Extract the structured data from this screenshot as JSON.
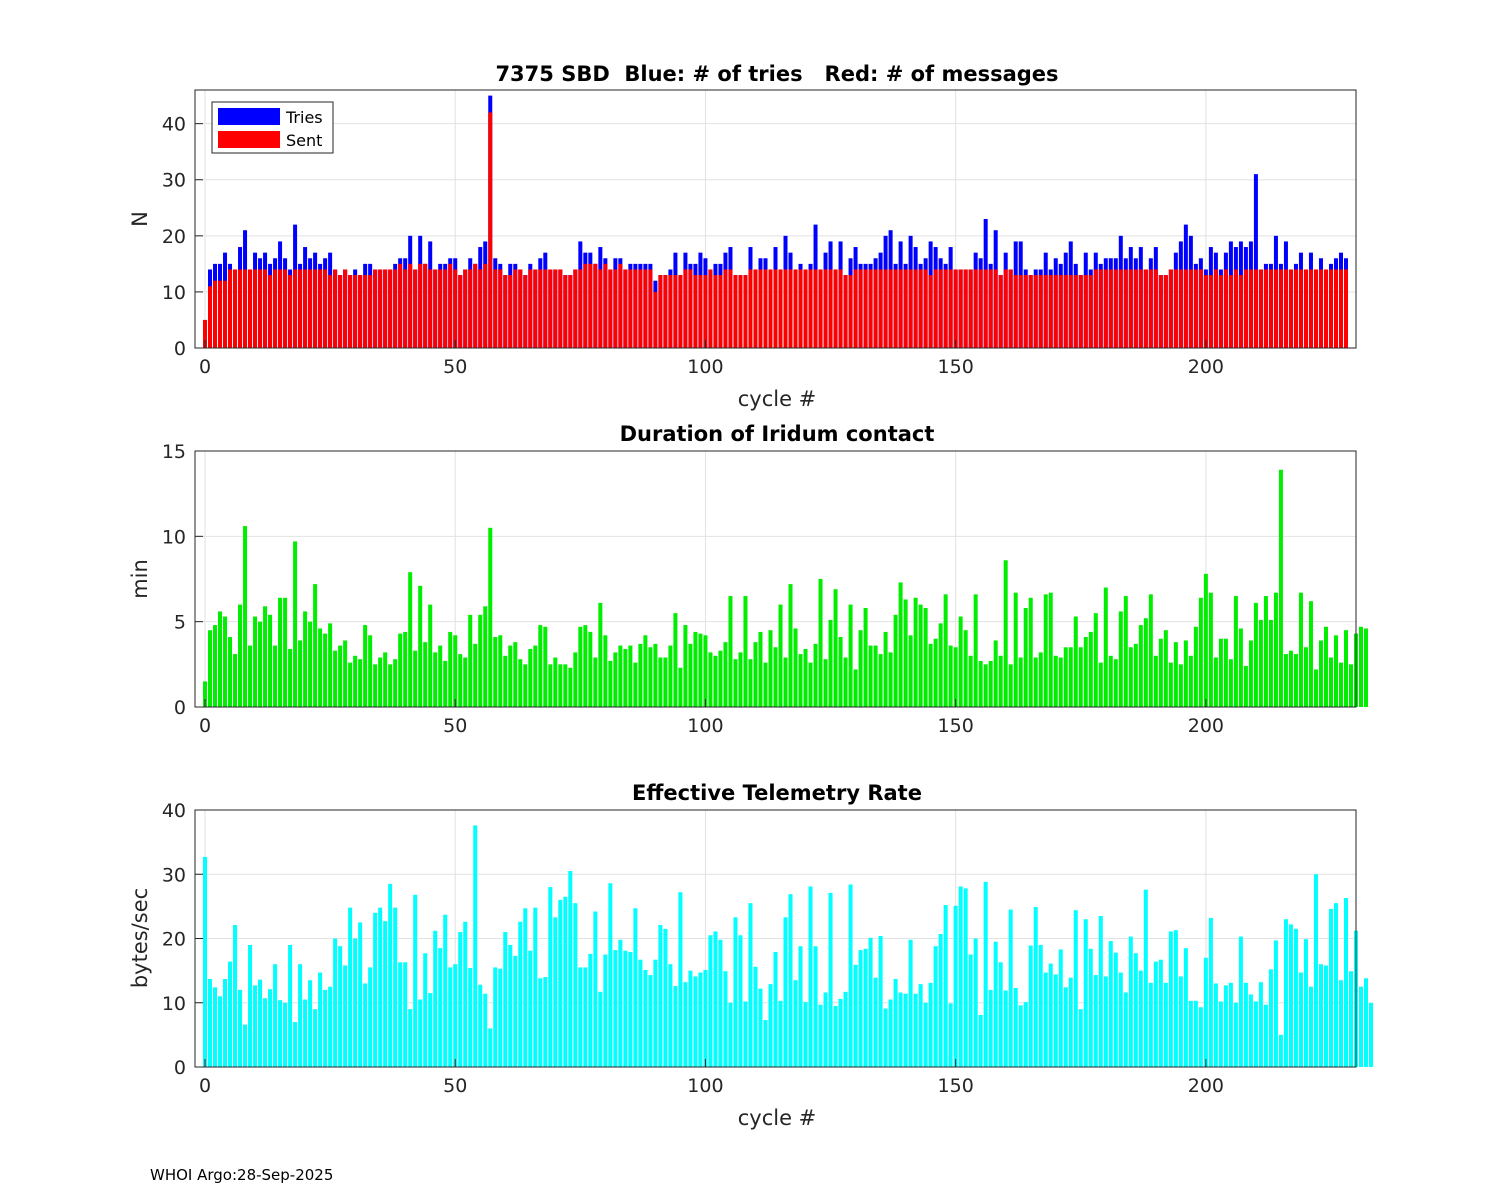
{
  "footer": {
    "label": "WHOI Argo:",
    "date": "28-Sep-2025"
  },
  "chart_data": [
    {
      "type": "bar",
      "title": "7375 SBD  Blue: # of tries   Red: # of messages",
      "xlabel": "cycle #",
      "ylabel": "N",
      "xlim": [
        -2,
        230
      ],
      "ylim": [
        0,
        46
      ],
      "xticks": [
        0,
        50,
        100,
        150,
        200
      ],
      "yticks": [
        0,
        10,
        20,
        30,
        40
      ],
      "grid": true,
      "legend": {
        "position": "top-left",
        "entries": [
          {
            "name": "Tries",
            "color": "#0000ff"
          },
          {
            "name": "Sent",
            "color": "#ff0000"
          }
        ]
      },
      "x_start": 0,
      "series": [
        {
          "name": "Tries",
          "color": "#0000ff",
          "values": [
            5,
            14,
            15,
            15,
            17,
            15,
            14,
            18,
            21,
            14,
            17,
            16,
            17,
            15,
            16,
            19,
            16,
            14,
            22,
            15,
            18,
            16,
            17,
            15,
            16,
            17,
            14,
            13,
            14,
            13,
            14,
            13,
            15,
            15,
            14,
            14,
            14,
            14,
            15,
            16,
            16,
            20,
            14,
            20,
            15,
            19,
            14,
            15,
            15,
            16,
            16,
            13,
            14,
            16,
            15,
            18,
            19,
            45,
            16,
            15,
            13,
            15,
            15,
            14,
            13,
            15,
            14,
            16,
            17,
            14,
            14,
            14,
            13,
            13,
            14,
            19,
            17,
            17,
            15,
            18,
            16,
            14,
            16,
            16,
            14,
            15,
            15,
            15,
            15,
            15,
            12,
            13,
            13,
            14,
            17,
            13,
            17,
            15,
            15,
            17,
            16,
            14,
            15,
            15,
            17,
            18,
            13,
            13,
            13,
            18,
            14,
            16,
            16,
            14,
            18,
            14,
            20,
            17,
            14,
            15,
            14,
            15,
            22,
            14,
            17,
            19,
            14,
            19,
            13,
            16,
            18,
            15,
            15,
            15,
            16,
            17,
            20,
            21,
            15,
            19,
            15,
            20,
            18,
            15,
            16,
            19,
            18,
            16,
            15,
            18,
            14,
            14,
            14,
            14,
            17,
            16,
            23,
            15,
            21,
            13,
            17,
            14,
            19,
            19,
            14,
            13,
            14,
            14,
            17,
            14,
            16,
            15,
            17,
            19,
            15,
            13,
            17,
            14,
            17,
            15,
            16,
            16,
            16,
            20,
            16,
            18,
            16,
            18,
            14,
            16,
            18,
            13,
            13,
            14,
            17,
            19,
            22,
            20,
            15,
            16,
            14,
            18,
            17,
            14,
            17,
            19,
            18,
            19,
            18,
            19,
            31,
            14,
            15,
            15,
            20,
            15,
            19,
            14,
            15,
            17,
            14,
            17,
            14,
            16,
            14,
            15,
            16,
            17,
            16
          ]
        },
        {
          "name": "Sent",
          "color": "#ff0000",
          "values": [
            5,
            11,
            12,
            12,
            12,
            14,
            14,
            14,
            14,
            14,
            14,
            14,
            14,
            13,
            14,
            14,
            14,
            13,
            14,
            14,
            14,
            14,
            14,
            14,
            14,
            13,
            14,
            13,
            14,
            13,
            13,
            13,
            13,
            13,
            14,
            14,
            14,
            14,
            14,
            15,
            14,
            15,
            14,
            15,
            15,
            14,
            14,
            14,
            14,
            15,
            14,
            13,
            14,
            14,
            15,
            14,
            15,
            42,
            14,
            14,
            13,
            13,
            14,
            14,
            13,
            14,
            14,
            14,
            14,
            14,
            14,
            14,
            13,
            13,
            14,
            14,
            15,
            15,
            15,
            14,
            15,
            14,
            14,
            15,
            14,
            14,
            14,
            14,
            14,
            14,
            10,
            13,
            13,
            13,
            13,
            13,
            14,
            14,
            13,
            13,
            13,
            14,
            13,
            13,
            14,
            14,
            13,
            13,
            13,
            14,
            14,
            14,
            14,
            14,
            14,
            14,
            14,
            14,
            14,
            14,
            14,
            14,
            14,
            14,
            14,
            14,
            14,
            14,
            13,
            13,
            14,
            14,
            14,
            14,
            14,
            14,
            14,
            14,
            14,
            14,
            14,
            14,
            14,
            14,
            14,
            13,
            14,
            14,
            14,
            14,
            14,
            14,
            14,
            14,
            14,
            14,
            14,
            14,
            14,
            13,
            14,
            14,
            13,
            13,
            13,
            13,
            13,
            13,
            13,
            13,
            13,
            13,
            13,
            13,
            13,
            13,
            13,
            13,
            14,
            14,
            14,
            14,
            14,
            14,
            14,
            14,
            14,
            14,
            14,
            14,
            14,
            13,
            13,
            14,
            14,
            14,
            14,
            14,
            14,
            14,
            13,
            13,
            14,
            13,
            14,
            13,
            14,
            13,
            14,
            14,
            14,
            14,
            14,
            14,
            14,
            14,
            14,
            14,
            14,
            14,
            14,
            14,
            14,
            14,
            14,
            14,
            14,
            14,
            14
          ]
        }
      ]
    },
    {
      "type": "bar",
      "title": "Duration of Iridum contact",
      "xlabel": "",
      "ylabel": "min",
      "xlim": [
        -2,
        230
      ],
      "ylim": [
        0,
        15
      ],
      "xticks": [
        0,
        50,
        100,
        150,
        200
      ],
      "yticks": [
        0,
        5,
        10,
        15
      ],
      "grid": true,
      "x_start": 0,
      "series": [
        {
          "name": "Duration",
          "color": "#00ee00",
          "values": [
            1.5,
            4.5,
            4.8,
            5.6,
            5.3,
            4.1,
            3.1,
            6.0,
            10.6,
            3.6,
            5.3,
            5.0,
            5.9,
            5.4,
            3.6,
            6.4,
            6.4,
            3.4,
            9.7,
            3.9,
            5.6,
            5.0,
            7.2,
            4.6,
            4.3,
            4.9,
            3.3,
            3.6,
            3.9,
            2.6,
            3.0,
            2.8,
            4.8,
            4.2,
            2.5,
            2.9,
            3.2,
            2.5,
            2.8,
            4.3,
            4.4,
            7.9,
            3.3,
            7.1,
            3.8,
            6.0,
            3.2,
            3.6,
            2.7,
            4.4,
            4.2,
            3.1,
            2.9,
            5.4,
            3.7,
            5.4,
            5.9,
            10.5,
            4.1,
            4.2,
            3.0,
            3.6,
            3.8,
            2.8,
            2.5,
            3.4,
            3.6,
            4.8,
            4.7,
            2.5,
            2.9,
            2.5,
            2.5,
            2.3,
            3.2,
            4.7,
            4.8,
            4.4,
            2.9,
            6.1,
            4.2,
            2.7,
            3.2,
            3.6,
            3.4,
            3.6,
            2.6,
            3.7,
            4.2,
            3.5,
            3.7,
            2.9,
            2.9,
            3.6,
            5.5,
            2.3,
            4.8,
            3.7,
            4.4,
            4.3,
            4.2,
            3.2,
            3.0,
            3.3,
            3.8,
            6.5,
            2.8,
            3.2,
            6.5,
            2.8,
            3.8,
            4.4,
            2.6,
            4.5,
            3.5,
            6.0,
            2.9,
            7.2,
            4.6,
            3.1,
            3.4,
            2.6,
            3.7,
            7.5,
            2.8,
            5.1,
            6.9,
            4.1,
            2.9,
            6.0,
            2.2,
            4.5,
            5.8,
            3.6,
            3.6,
            3.1,
            4.4,
            3.2,
            5.4,
            7.3,
            6.3,
            4.2,
            6.4,
            6.0,
            5.8,
            3.7,
            4.0,
            4.9,
            6.6,
            3.6,
            3.5,
            5.3,
            4.5,
            3.0,
            6.6,
            2.7,
            2.5,
            2.7,
            3.9,
            3.0,
            8.6,
            2.5,
            6.7,
            2.9,
            5.8,
            6.4,
            2.9,
            3.2,
            6.6,
            6.7,
            3.0,
            2.9,
            3.5,
            3.5,
            5.3,
            3.5,
            4.1,
            4.4,
            5.5,
            2.6,
            7.0,
            3.0,
            2.8,
            5.6,
            6.5,
            3.5,
            3.7,
            4.8,
            5.2,
            6.6,
            3.0,
            4.0,
            4.5,
            2.6,
            3.8,
            2.5,
            3.9,
            3.0,
            4.7,
            6.4,
            7.8,
            6.7,
            2.9,
            4.0,
            4.0,
            2.8,
            6.5,
            4.6,
            2.4,
            3.9,
            6.1,
            5.1,
            6.5,
            5.1,
            6.7,
            13.9,
            3.1,
            3.3,
            3.1,
            6.7,
            3.5,
            6.2,
            2.2,
            3.9,
            4.7,
            2.9,
            4.2,
            2.6,
            4.5,
            2.5,
            4.3,
            4.7,
            4.6
          ]
        }
      ]
    },
    {
      "type": "bar",
      "title": "Effective Telemetry Rate",
      "xlabel": "cycle #",
      "ylabel": "bytes/sec",
      "xlim": [
        -2,
        230
      ],
      "ylim": [
        0,
        40
      ],
      "xticks": [
        0,
        50,
        100,
        150,
        200
      ],
      "yticks": [
        0,
        10,
        20,
        30,
        40
      ],
      "grid": true,
      "x_start": 0,
      "series": [
        {
          "name": "Rate",
          "color": "#00ffff",
          "values": [
            32.7,
            13.7,
            12.4,
            11.0,
            13.7,
            16.4,
            22.1,
            12.0,
            6.6,
            19.0,
            12.7,
            13.6,
            10.7,
            12.1,
            16.0,
            10.4,
            10.0,
            19.0,
            7.0,
            16.0,
            10.5,
            13.5,
            9.0,
            14.7,
            12.0,
            12.5,
            20.0,
            18.8,
            15.8,
            24.8,
            20.0,
            22.5,
            13.0,
            15.5,
            24.0,
            24.8,
            22.7,
            28.5,
            24.8,
            16.3,
            16.3,
            9.0,
            26.8,
            10.5,
            17.7,
            11.5,
            21.2,
            18.5,
            23.7,
            15.5,
            16.0,
            21.0,
            22.6,
            15.4,
            37.6,
            12.8,
            11.4,
            6.0,
            15.5,
            15.3,
            21.0,
            19.0,
            17.3,
            22.6,
            24.7,
            18.1,
            24.8,
            13.8,
            14.0,
            28.0,
            23.3,
            26.0,
            26.5,
            30.5,
            25.5,
            15.5,
            15.5,
            17.6,
            24.2,
            11.7,
            17.5,
            28.6,
            18.2,
            19.8,
            18.1,
            17.9,
            24.7,
            16.7,
            15.1,
            14.3,
            16.7,
            22.1,
            21.5,
            16.0,
            12.6,
            27.2,
            13.2,
            15.0,
            14.1,
            14.7,
            15.1,
            20.5,
            21.1,
            19.8,
            14.9,
            10.0,
            23.3,
            20.5,
            10.2,
            25.5,
            15.6,
            12.2,
            7.3,
            12.9,
            17.9,
            10.3,
            23.3,
            26.9,
            13.5,
            18.8,
            10.1,
            28.1,
            18.8,
            9.7,
            11.6,
            27.1,
            9.5,
            10.6,
            11.7,
            28.4,
            15.9,
            18.2,
            18.4,
            20.1,
            13.9,
            20.4,
            9.1,
            10.5,
            13.7,
            11.6,
            11.4,
            19.8,
            11.4,
            12.9,
            10.0,
            13.1,
            18.8,
            20.7,
            25.2,
            9.9,
            25.1,
            28.1,
            27.8,
            17.5,
            20.0,
            8.1,
            28.8,
            12.0,
            19.5,
            16.3,
            11.9,
            24.5,
            12.3,
            9.6,
            10.1,
            18.9,
            24.9,
            19.0,
            14.7,
            16.1,
            14.4,
            18.3,
            12.4,
            13.9,
            24.4,
            9.0,
            23.0,
            18.4,
            14.3,
            23.5,
            14.1,
            19.6,
            17.8,
            14.7,
            11.6,
            20.3,
            17.7,
            15.0,
            27.6,
            13.1,
            16.4,
            16.7,
            13.1,
            21.1,
            21.3,
            14.1,
            18.5,
            10.3,
            10.3,
            9.3,
            17.0,
            23.2,
            13.0,
            10.2,
            12.7,
            13.1,
            10.0,
            20.3,
            13.1,
            11.3,
            10.2,
            13.2,
            9.7,
            15.2,
            19.7,
            5.0,
            23.0,
            22.2,
            21.5,
            14.7,
            19.9,
            12.5,
            30.0,
            16.0,
            15.8,
            24.6,
            25.5,
            13.5,
            26.3,
            14.9,
            21.2,
            12.5,
            13.8,
            10.0
          ]
        }
      ]
    }
  ]
}
